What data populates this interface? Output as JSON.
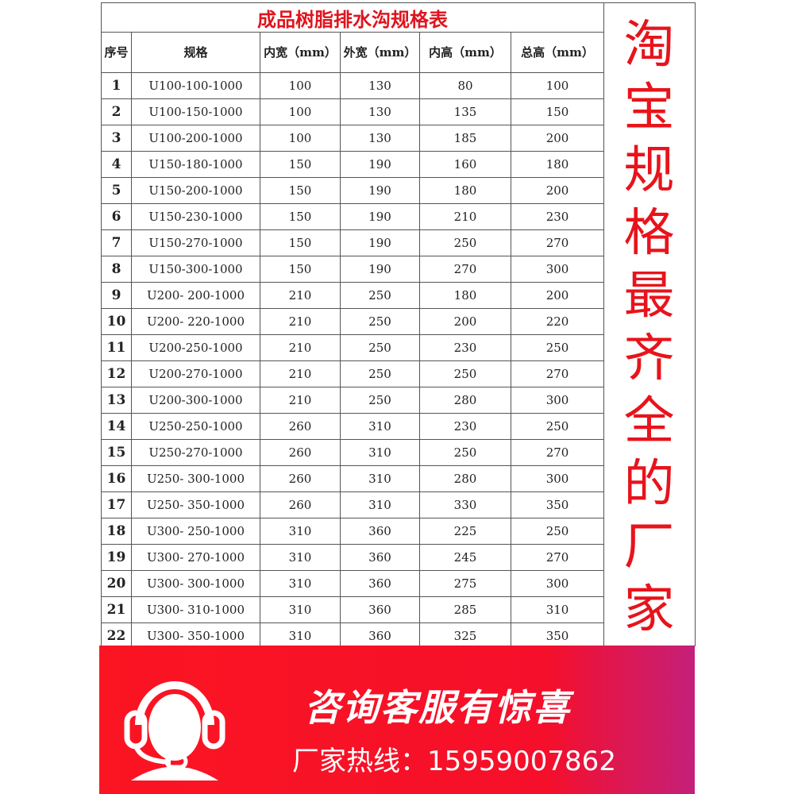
{
  "table": {
    "title": "成品树脂排水沟规格表",
    "headers": [
      "序号",
      "规格",
      "内宽（mm）",
      "外宽（mm）",
      "内高（mm）",
      "总高（mm）"
    ],
    "rows": [
      [
        "1",
        "U100-100-1000",
        "100",
        "130",
        "80",
        "100"
      ],
      [
        "2",
        "U100-150-1000",
        "100",
        "130",
        "135",
        "150"
      ],
      [
        "3",
        "U100-200-1000",
        "100",
        "130",
        "185",
        "200"
      ],
      [
        "4",
        "U150-180-1000",
        "150",
        "190",
        "160",
        "180"
      ],
      [
        "5",
        "U150-200-1000",
        "150",
        "190",
        "180",
        "200"
      ],
      [
        "6",
        "U150-230-1000",
        "150",
        "190",
        "210",
        "230"
      ],
      [
        "7",
        "U150-270-1000",
        "150",
        "190",
        "250",
        "270"
      ],
      [
        "8",
        "U150-300-1000",
        "150",
        "190",
        "270",
        "300"
      ],
      [
        "9",
        "U200- 200-1000",
        "210",
        "250",
        "180",
        "200"
      ],
      [
        "10",
        "U200- 220-1000",
        "210",
        "250",
        "200",
        "220"
      ],
      [
        "11",
        "U200-250-1000",
        "210",
        "250",
        "230",
        "250"
      ],
      [
        "12",
        "U200-270-1000",
        "210",
        "250",
        "250",
        "270"
      ],
      [
        "13",
        "U200-300-1000",
        "210",
        "250",
        "280",
        "300"
      ],
      [
        "14",
        "U250-250-1000",
        "260",
        "310",
        "230",
        "250"
      ],
      [
        "15",
        "U250-270-1000",
        "260",
        "310",
        "250",
        "270"
      ],
      [
        "16",
        "U250- 300-1000",
        "260",
        "310",
        "280",
        "300"
      ],
      [
        "17",
        "U250- 350-1000",
        "260",
        "310",
        "330",
        "350"
      ],
      [
        "18",
        "U300- 250-1000",
        "310",
        "360",
        "225",
        "250"
      ],
      [
        "19",
        "U300- 270-1000",
        "310",
        "360",
        "245",
        "270"
      ],
      [
        "20",
        "U300- 300-1000",
        "310",
        "360",
        "275",
        "300"
      ],
      [
        "21",
        "U300- 310-1000",
        "310",
        "360",
        "285",
        "310"
      ],
      [
        "22",
        "U300- 350-1000",
        "310",
        "360",
        "325",
        "350"
      ]
    ]
  },
  "side_text": "淘宝规格最齐全的厂家",
  "banner": {
    "slogan": "咨询客服有惊喜",
    "hotline": "厂家热线：15959007862",
    "icon": "headset-customer-service-icon",
    "colors": {
      "red": "#fb1522",
      "magenta": "#c4207a"
    }
  }
}
